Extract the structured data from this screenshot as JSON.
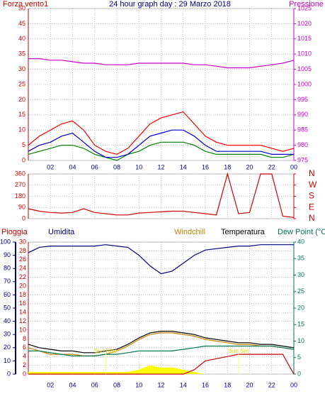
{
  "chart_data": [
    {
      "type": "line",
      "title": "24 hour graph day : 29 Marzo 2018",
      "ylabel": "Forza vento1",
      "y2label": "Pressione",
      "x": [
        0,
        1,
        2,
        3,
        4,
        5,
        6,
        7,
        8,
        9,
        10,
        11,
        12,
        13,
        14,
        15,
        16,
        17,
        18,
        19,
        20,
        21,
        22,
        23,
        24
      ],
      "xlim": [
        0,
        24
      ],
      "xticks": [
        {
          "value": 2,
          "label": "02"
        },
        {
          "value": 4,
          "label": "04"
        },
        {
          "value": 6,
          "label": "06"
        },
        {
          "value": 8,
          "label": "08"
        },
        10,
        12,
        14,
        16,
        18,
        20,
        22,
        {
          "value": 24,
          "label": "00"
        }
      ],
      "ylim": [
        0,
        50
      ],
      "yticks": [
        0,
        5,
        10,
        15,
        20,
        25,
        30,
        35,
        40,
        45,
        50
      ],
      "y2lim": [
        975,
        1025
      ],
      "y2ticks": [
        975,
        980,
        985,
        990,
        995,
        1000,
        1005,
        1010,
        1015,
        1020,
        1025
      ],
      "grid": true,
      "series": [
        {
          "color": "#ff0000",
          "values": [
            5,
            8,
            10,
            12,
            13,
            10,
            5,
            3,
            2,
            4,
            8,
            12,
            14,
            15,
            16,
            12,
            8,
            6,
            5,
            5,
            5,
            5,
            4,
            3,
            4
          ]
        },
        {
          "color": "#008000",
          "values": [
            2,
            3,
            4,
            5,
            5,
            4,
            2,
            1,
            0,
            2,
            3,
            5,
            6,
            6,
            6,
            5,
            3,
            2,
            2,
            2,
            2,
            2,
            1,
            1,
            2
          ]
        },
        {
          "color": "#0000cc",
          "values": [
            3,
            5,
            6,
            8,
            9,
            6,
            3,
            1,
            1,
            2,
            5,
            8,
            9,
            10,
            10,
            8,
            5,
            3,
            3,
            3,
            3,
            3,
            2,
            2,
            2
          ]
        },
        {
          "color": "#cc00cc",
          "axis": "y2",
          "values": [
            1008.5,
            1008.5,
            1008,
            1008,
            1007.5,
            1007,
            1007,
            1006.5,
            1006.5,
            1006.5,
            1007,
            1007,
            1007,
            1007,
            1007,
            1006.5,
            1006.5,
            1006,
            1005.5,
            1005.5,
            1005.5,
            1006,
            1006.5,
            1007,
            1008
          ]
        }
      ]
    },
    {
      "type": "line",
      "x": [
        0,
        1,
        2,
        3,
        4,
        5,
        6,
        7,
        8,
        9,
        10,
        11,
        12,
        13,
        14,
        15,
        16,
        17,
        18,
        19,
        20,
        21,
        22,
        23,
        24
      ],
      "xlim": [
        0,
        24
      ],
      "xticks": [
        2,
        4,
        6,
        8,
        10,
        12,
        14,
        16,
        18,
        20,
        22,
        24
      ],
      "ylim": [
        0,
        360
      ],
      "yticks": [
        0,
        90,
        180,
        270,
        360
      ],
      "y2lim": [
        0,
        360
      ],
      "y2ticks": [
        {
          "value": 0,
          "label": "N"
        },
        {
          "value": 90,
          "label": "E"
        },
        {
          "value": 180,
          "label": "S"
        },
        {
          "value": 270,
          "label": "W"
        },
        {
          "value": 360,
          "label": "N"
        }
      ],
      "grid": true,
      "series": [
        {
          "color": "#cc0000",
          "values": [
            80,
            60,
            50,
            45,
            50,
            80,
            50,
            40,
            30,
            30,
            45,
            50,
            55,
            60,
            60,
            50,
            40,
            30,
            360,
            40,
            50,
            360,
            360,
            20,
            10
          ]
        }
      ]
    },
    {
      "type": "line",
      "x": [
        0,
        1,
        2,
        3,
        4,
        5,
        6,
        7,
        8,
        9,
        10,
        11,
        12,
        13,
        14,
        15,
        16,
        17,
        18,
        19,
        20,
        21,
        22,
        23,
        24
      ],
      "xlim": [
        0,
        24
      ],
      "xticks": [
        {
          "value": 2,
          "label": "02"
        },
        {
          "value": 4,
          "label": "04"
        },
        {
          "value": 6,
          "label": "06"
        },
        {
          "value": 8,
          "label": "08"
        },
        10,
        12,
        14,
        16,
        18,
        20,
        22,
        {
          "value": 24,
          "label": "00"
        }
      ],
      "ylim": [
        0,
        30
      ],
      "yticks": [
        0,
        2,
        4,
        6,
        8,
        10,
        12,
        14,
        16,
        18,
        20,
        22,
        24,
        26,
        28,
        30
      ],
      "y3lim": [
        0,
        100
      ],
      "y3ticks": [
        0,
        10,
        20,
        30,
        40,
        50,
        60,
        70,
        80,
        90,
        100
      ],
      "y2lim": [
        0,
        40
      ],
      "y2ticks": [
        0,
        5,
        10,
        15,
        20,
        25,
        30,
        35,
        40
      ],
      "grid": true,
      "annotations": [
        {
          "text": "Sun Rise",
          "x": 7
        },
        {
          "text": "Sun Set",
          "x": 19
        }
      ],
      "series": [
        {
          "color": "#ffff00",
          "kind": "area",
          "values": [
            0.5,
            0.5,
            0.5,
            0.5,
            0.5,
            0.5,
            0.5,
            0.5,
            0.5,
            0.5,
            1,
            2,
            1.5,
            1.5,
            1,
            0.5,
            0,
            0,
            0,
            0,
            0,
            0,
            0,
            0,
            0
          ]
        },
        {
          "name": "Pioggia",
          "color": "#cc0000",
          "values": [
            0,
            0,
            0,
            0,
            0,
            0,
            0,
            0,
            0,
            0,
            0,
            0,
            0,
            0,
            0,
            1,
            3,
            3.5,
            4,
            4.5,
            4.5,
            4.5,
            4.5,
            4.5,
            0
          ]
        },
        {
          "name": "Umidita",
          "color": "#000080",
          "axis": "y3",
          "values": [
            92,
            96,
            97,
            97,
            97,
            97,
            97,
            98,
            97,
            96,
            90,
            82,
            76,
            78,
            84,
            90,
            94,
            95,
            96,
            97,
            97,
            98,
            98,
            98,
            98
          ]
        },
        {
          "name": "Windchill",
          "color": "#cc8000",
          "axis": "y2",
          "values": [
            8,
            7,
            6,
            6,
            6,
            5.5,
            5.5,
            6,
            7,
            8.5,
            10.5,
            12,
            12.5,
            12.5,
            12,
            11.5,
            10.5,
            10,
            9.5,
            9,
            9,
            8.5,
            8.5,
            8,
            7.5
          ]
        },
        {
          "name": "Temperatura",
          "color": "#000000",
          "axis": "y2",
          "values": [
            9,
            8,
            7.5,
            7,
            7,
            6.5,
            6.5,
            7,
            7.5,
            9,
            11,
            12.5,
            13,
            13,
            12.5,
            12,
            11,
            10.5,
            10,
            9.5,
            9.5,
            9,
            9,
            8.5,
            8
          ]
        },
        {
          "name": "Dew Point (°C",
          "color": "#007755",
          "axis": "y2",
          "values": [
            7,
            7,
            6.5,
            6,
            5.5,
            5.5,
            5.5,
            6,
            6,
            6.5,
            7,
            7,
            7,
            7,
            7.5,
            8,
            8.5,
            8.5,
            8.5,
            8.5,
            8.5,
            8.5,
            8.5,
            8,
            7.5
          ]
        }
      ]
    }
  ]
}
